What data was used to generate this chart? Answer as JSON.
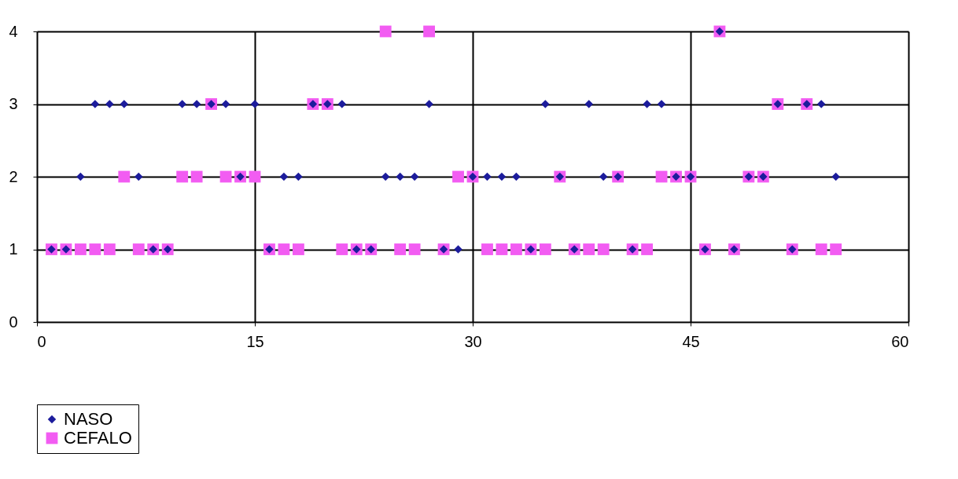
{
  "chart_data": {
    "type": "scatter",
    "xlim": [
      0,
      60
    ],
    "xticks": [
      0,
      15,
      30,
      45,
      60
    ],
    "ylim": [
      0,
      4
    ],
    "yticks": [
      0,
      1,
      2,
      3,
      4
    ],
    "grid": true,
    "legend": "bottom",
    "series": [
      {
        "name": "NASO",
        "color": "#1c1c9c",
        "marker": "diamond",
        "x": [
          1,
          2,
          8,
          9,
          16,
          22,
          23,
          28,
          29,
          34,
          37,
          41,
          46,
          48,
          52,
          3,
          7,
          14,
          17,
          18,
          24,
          25,
          26,
          30,
          31,
          32,
          33,
          36,
          39,
          40,
          44,
          45,
          49,
          50,
          55,
          4,
          5,
          6,
          10,
          11,
          12,
          13,
          15,
          19,
          20,
          21,
          27,
          35,
          38,
          42,
          43,
          51,
          53,
          54,
          47
        ],
        "values": [
          1,
          1,
          1,
          1,
          1,
          1,
          1,
          1,
          1,
          1,
          1,
          1,
          1,
          1,
          1,
          2,
          2,
          2,
          2,
          2,
          2,
          2,
          2,
          2,
          2,
          2,
          2,
          2,
          2,
          2,
          2,
          2,
          2,
          2,
          2,
          3,
          3,
          3,
          3,
          3,
          3,
          3,
          3,
          3,
          3,
          3,
          3,
          3,
          3,
          3,
          3,
          3,
          3,
          3,
          4
        ]
      },
      {
        "name": "CEFALO",
        "color": "#f25cf2",
        "marker": "square",
        "x": [
          1,
          2,
          3,
          4,
          5,
          7,
          8,
          9,
          16,
          17,
          18,
          21,
          22,
          23,
          25,
          26,
          28,
          31,
          32,
          33,
          34,
          35,
          37,
          38,
          39,
          41,
          42,
          46,
          48,
          52,
          54,
          55,
          6,
          10,
          11,
          13,
          14,
          15,
          29,
          30,
          36,
          40,
          43,
          44,
          45,
          49,
          50,
          12,
          19,
          20,
          51,
          53,
          24,
          27,
          47
        ],
        "values": [
          1,
          1,
          1,
          1,
          1,
          1,
          1,
          1,
          1,
          1,
          1,
          1,
          1,
          1,
          1,
          1,
          1,
          1,
          1,
          1,
          1,
          1,
          1,
          1,
          1,
          1,
          1,
          1,
          1,
          1,
          1,
          1,
          2,
          2,
          2,
          2,
          2,
          2,
          2,
          2,
          2,
          2,
          2,
          2,
          2,
          2,
          2,
          3,
          3,
          3,
          3,
          3,
          4,
          4,
          4
        ]
      }
    ]
  }
}
